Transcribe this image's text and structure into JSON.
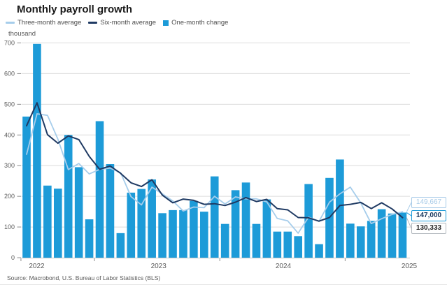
{
  "title": "Monthly payroll growth",
  "axis_unit": "thousand",
  "source": "Source: Macrobond, U.S. Bureau of Labor Statistics (BLS)",
  "legend": {
    "items": [
      {
        "label": "Three-month average",
        "marker": "line",
        "color": "#a6cdeb"
      },
      {
        "label": "Six-month average",
        "marker": "line",
        "color": "#1f3a63"
      },
      {
        "label": "One-month change",
        "marker": "square",
        "color": "#1d9bd8"
      }
    ]
  },
  "callouts": [
    {
      "value": "149,667",
      "series": "Three-month average"
    },
    {
      "value": "147,000",
      "series": "One-month change"
    },
    {
      "value": "130,333",
      "series": "Six-month average"
    }
  ],
  "colors": {
    "bar": "#1d9bd8",
    "three_month_line": "#a6cdeb",
    "six_month_line": "#1f3a63",
    "grid": "#dcdcdc",
    "axis_text": "#595959",
    "title_text": "#1a1a1a"
  },
  "chart_data": {
    "type": "bar",
    "title": "Monthly payroll growth",
    "ylabel": "thousand",
    "ylim": [
      0,
      700
    ],
    "yticks": [
      0,
      100,
      200,
      300,
      400,
      500,
      600,
      700
    ],
    "grid": "horizontal",
    "legend_position": "top-left",
    "x_year_tick_labels": [
      "2022",
      "2023",
      "2024",
      "2025"
    ],
    "months": [
      "Jun 2022",
      "Jul 2022",
      "Aug 2022",
      "Sep 2022",
      "Oct 2022",
      "Nov 2022",
      "Dec 2022",
      "Jan 2023",
      "Feb 2023",
      "Mar 2023",
      "Apr 2023",
      "May 2023",
      "Jun 2023",
      "Jul 2023",
      "Aug 2023",
      "Sep 2023",
      "Oct 2023",
      "Nov 2023",
      "Dec 2023",
      "Jan 2024",
      "Feb 2024",
      "Mar 2024",
      "Apr 2024",
      "May 2024",
      "Jun 2024",
      "Jul 2024",
      "Aug 2024",
      "Sep 2024",
      "Oct 2024",
      "Nov 2024",
      "Dec 2024",
      "Jan 2025",
      "Feb 2025",
      "Mar 2025",
      "Apr 2025",
      "May 2025",
      "Jun 2025"
    ],
    "bar_series": {
      "name": "One-month change",
      "values": [
        460,
        697,
        235,
        225,
        400,
        295,
        125,
        445,
        305,
        80,
        212,
        224,
        255,
        145,
        155,
        155,
        185,
        150,
        265,
        110,
        220,
        245,
        110,
        190,
        85,
        85,
        70,
        240,
        44,
        260,
        320,
        111,
        102,
        120,
        158,
        144,
        147
      ]
    },
    "line_series": [
      {
        "name": "Three-month average",
        "values": [
          337,
          469,
          464,
          386,
          287,
          307,
          273,
          288,
          292,
          277,
          199,
          172,
          230,
          208,
          185,
          152,
          165,
          163,
          200,
          175,
          198,
          192,
          192,
          182,
          128,
          120,
          80,
          132,
          118,
          181,
          208,
          230,
          178,
          111,
          127,
          141,
          149.667
        ]
      },
      {
        "name": "Six-month average",
        "values": [
          430,
          505,
          401,
          373,
          397,
          385,
          330,
          288,
          299,
          275,
          244,
          232,
          254,
          204,
          179,
          191,
          187,
          174,
          176,
          170,
          181,
          196,
          183,
          190,
          160,
          156,
          131,
          130,
          119,
          131,
          170,
          174,
          180,
          160,
          179,
          159,
          130.333
        ]
      }
    ],
    "end_labels": {
      "three_month": 149667,
      "one_month": 147000,
      "six_month": 130333
    }
  }
}
